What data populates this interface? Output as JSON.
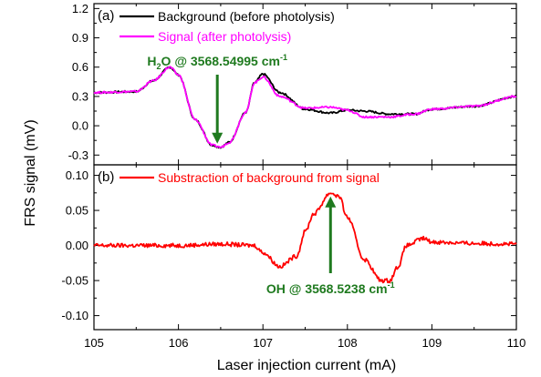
{
  "figure": {
    "ylabel": "FRS signal (mV)",
    "xlabel": "Laser injection current (mA)"
  },
  "colors": {
    "background_series": "#000000",
    "signal_series": "#ff00ff",
    "difference_series": "#ff0000",
    "annotation": "#1f7a1f"
  },
  "chart_data": [
    {
      "type": "line",
      "panel_label": "(a)",
      "xlim": [
        105,
        110
      ],
      "ylim": [
        -0.4,
        1.25
      ],
      "yticks": [
        -0.3,
        0.0,
        0.3,
        0.6,
        0.9,
        1.2
      ],
      "ytick_labels": [
        "-0.3",
        "0.0",
        "0.3",
        "0.6",
        "0.9",
        "1.2"
      ],
      "series": [
        {
          "name": "Background (before photolysis)",
          "color": "#000000",
          "x": [
            105.0,
            105.5,
            105.7,
            105.9,
            106.0,
            106.2,
            106.4,
            106.5,
            106.6,
            106.8,
            106.9,
            107.0,
            107.2,
            107.5,
            107.8,
            108.0,
            108.2,
            108.5,
            108.8,
            109.0,
            109.5,
            110.0
          ],
          "y": [
            0.34,
            0.35,
            0.46,
            0.6,
            0.52,
            0.06,
            -0.2,
            -0.22,
            -0.17,
            0.14,
            0.44,
            0.53,
            0.34,
            0.17,
            0.13,
            0.16,
            0.15,
            0.12,
            0.12,
            0.17,
            0.2,
            0.3
          ]
        },
        {
          "name": "Signal (after photolysis)",
          "color": "#ff00ff",
          "x": [
            105.0,
            105.5,
            105.7,
            105.9,
            106.0,
            106.2,
            106.4,
            106.5,
            106.6,
            106.8,
            106.9,
            107.0,
            107.2,
            107.5,
            107.8,
            108.0,
            108.2,
            108.5,
            108.8,
            109.0,
            109.5,
            110.0
          ],
          "y": [
            0.34,
            0.35,
            0.46,
            0.6,
            0.52,
            0.06,
            -0.2,
            -0.22,
            -0.17,
            0.14,
            0.44,
            0.5,
            0.3,
            0.18,
            0.19,
            0.16,
            0.09,
            0.09,
            0.12,
            0.17,
            0.2,
            0.3
          ]
        }
      ],
      "annotation": {
        "label_main": "H",
        "label_sub": "2",
        "label_rest": "O @ 3568.54995 cm",
        "label_sup": "-1",
        "x": 106.46,
        "y": -0.22
      }
    },
    {
      "type": "line",
      "panel_label": "(b)",
      "xlim": [
        105,
        110
      ],
      "ylim": [
        -0.12,
        0.115
      ],
      "yticks": [
        -0.1,
        -0.05,
        0.0,
        0.05,
        0.1
      ],
      "ytick_labels": [
        "-0.10",
        "-0.05",
        "0.00",
        "0.05",
        "0.10"
      ],
      "xticks": [
        105,
        106,
        107,
        108,
        109,
        110
      ],
      "xtick_labels": [
        "105",
        "106",
        "107",
        "108",
        "109",
        "110"
      ],
      "series": [
        {
          "name": "Substraction of background from signal",
          "color": "#ff0000",
          "x": [
            105.0,
            105.5,
            106.0,
            106.5,
            106.9,
            107.0,
            107.2,
            107.4,
            107.5,
            107.6,
            107.8,
            107.9,
            108.0,
            108.2,
            108.4,
            108.5,
            108.6,
            108.7,
            108.9,
            109.0,
            109.5,
            110.0
          ],
          "y": [
            0.0,
            0.0,
            0.0,
            0.002,
            0.0,
            -0.01,
            -0.03,
            -0.015,
            0.02,
            0.045,
            0.075,
            0.07,
            0.04,
            -0.02,
            -0.05,
            -0.05,
            -0.03,
            0.0,
            0.01,
            0.005,
            0.003,
            0.002
          ]
        }
      ],
      "annotation": {
        "label_rest": "OH @ 3568.5238 cm",
        "label_sup": "-1",
        "x": 107.8,
        "y": 0.075
      }
    }
  ]
}
